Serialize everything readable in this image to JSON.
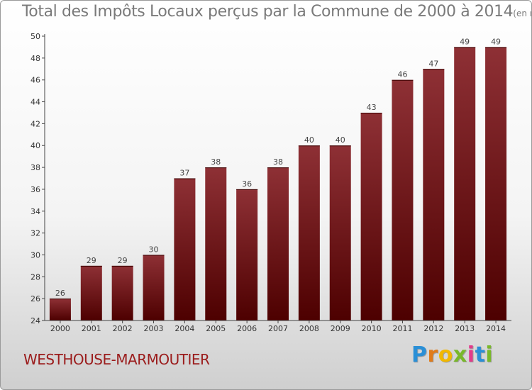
{
  "chart_data": {
    "type": "bar",
    "title": "Total des Impôts Locaux perçus par la Commune de 2000 à 2014",
    "unit": "(en milliers d'€)",
    "categories": [
      "2000",
      "2001",
      "2002",
      "2003",
      "2004",
      "2005",
      "2006",
      "2007",
      "2008",
      "2009",
      "2010",
      "2011",
      "2012",
      "2013",
      "2014"
    ],
    "values": [
      26,
      29,
      29,
      30,
      37,
      38,
      36,
      38,
      40,
      40,
      43,
      46,
      47,
      49,
      49
    ],
    "ylim": [
      24,
      50
    ],
    "yticks": [
      24,
      26,
      28,
      30,
      32,
      34,
      36,
      38,
      40,
      42,
      44,
      46,
      48,
      50
    ],
    "grid": false,
    "bar_color": "#7a1c1c"
  },
  "commune": "WESTHOUSE-MARMOUTIER",
  "logo": {
    "letters": [
      "P",
      "r",
      "o",
      "x",
      "i",
      "t",
      "i"
    ],
    "colors": [
      "#2a8fd6",
      "#e07b1a",
      "#f1b800",
      "#79b82a",
      "#e23a8a",
      "#2a8fd6",
      "#79b82a"
    ]
  }
}
